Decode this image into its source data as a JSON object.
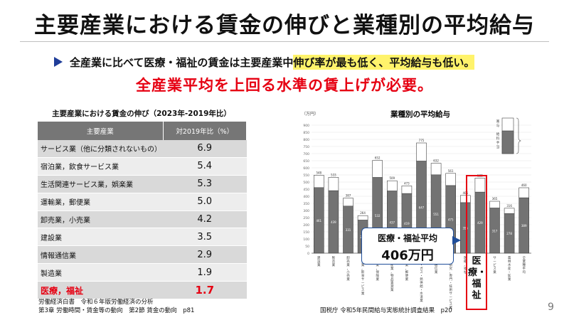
{
  "title": "主要産業における賃金の伸びと業種別の平均給与",
  "bullet": {
    "text_plain": "全産業に比べて医療・福祉の賃金は主要産業中",
    "text_highlight": "伸び率が最も低く、平均給与も低い。"
  },
  "headline": "全産業平均を上回る水準の賃上げが必要。",
  "table": {
    "title": "主要産業における賃金の伸び（2023年-2019年比）",
    "headers": [
      "主要産業",
      "対2019年比（%）"
    ],
    "rows": [
      {
        "category": "サービス業（他に分類されないもの）",
        "value": "6.9"
      },
      {
        "category": "宿泊業，飲食サービス業",
        "value": "5.4"
      },
      {
        "category": "生活関連サービス業，娯楽業",
        "value": "5.3"
      },
      {
        "category": "運輸業，郵便業",
        "value": "5.0"
      },
      {
        "category": "卸売業，小売業",
        "value": "4.2"
      },
      {
        "category": "建設業",
        "value": "3.5"
      },
      {
        "category": "情報通信業",
        "value": "2.9"
      },
      {
        "category": "製造業",
        "value": "1.9"
      },
      {
        "category": "医療，福祉",
        "value": "1.7"
      }
    ]
  },
  "source_left": {
    "line1": "労働経済白書　令和６年版労働経済の分析",
    "line2": "第3章 労働時間・賃金等の動向　第2節 賃金の動向　p81"
  },
  "source_right": "国税庁 令和5年民間給与実態統計調査結果　p20",
  "page_number": "9",
  "chart_data": {
    "type": "bar",
    "title": "業種別の平均給与",
    "y_unit_label": "（万円）",
    "ylim": [
      0,
      900
    ],
    "y_ticks": [
      0,
      50,
      100,
      150,
      200,
      250,
      300,
      350,
      400,
      450,
      500,
      550,
      600,
      650,
      700,
      750,
      800,
      850,
      900
    ],
    "categories": [
      "建設業",
      "製造業",
      "卸売業，小売業",
      "宿泊業，飲食サービス業",
      "金融業，保険業",
      "不動産業，物品賃貸業",
      "運輸業，郵便業",
      "電気・ガス・熱供給・水道業",
      "情報通信業",
      "学術研究，専門・技術サービス業，教育，学習支援業",
      "医療，福祉",
      "複合サービス事業",
      "サービス業",
      "農林水産・鉱業",
      "全業種平均"
    ],
    "series": [
      {
        "values": [
          548,
          533,
          387,
          264,
          652,
          509,
          473,
          775,
          632,
          561,
          406,
          528,
          365,
          316,
          460
        ]
      },
      {
        "values": [
          461,
          439,
          331,
          232,
          532,
          437,
          419,
          647,
          551,
          475,
          355,
          429,
          317,
          278,
          389
        ]
      }
    ],
    "legend_box": {
      "top_labels": [
        "賞",
        "与"
      ],
      "bottom_labels": [
        "給",
        "料",
        "手",
        "当"
      ]
    },
    "callout": {
      "label": "医療・福祉平均",
      "value": "406万円"
    },
    "highlight_label": "医療・福祉"
  },
  "colors": {
    "accent_red": "#e60012",
    "navy": "#1f3d99",
    "highlight": "#fff36b",
    "table_header": "#767676",
    "bar_fill": "#737373"
  }
}
